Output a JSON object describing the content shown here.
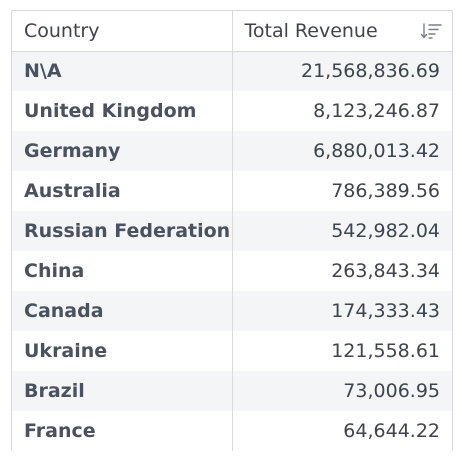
{
  "table": {
    "columns": [
      "Country",
      "Total Revenue"
    ],
    "rows": [
      {
        "country": "N\\A",
        "revenue": "21,568,836.69"
      },
      {
        "country": "United Kingdom",
        "revenue": "8,123,246.87"
      },
      {
        "country": "Germany",
        "revenue": "6,880,013.42"
      },
      {
        "country": "Australia",
        "revenue": "786,389.56"
      },
      {
        "country": "Russian Federation",
        "revenue": "542,982.04"
      },
      {
        "country": "China",
        "revenue": "263,843.34"
      },
      {
        "country": "Canada",
        "revenue": "174,333.43"
      },
      {
        "country": "Ukraine",
        "revenue": "121,558.61"
      },
      {
        "country": "Brazil",
        "revenue": "73,006.95"
      },
      {
        "country": "France",
        "revenue": "64,644.22"
      }
    ],
    "sort_icon": "sort-descending-icon",
    "colors": {
      "border": "#d9d9d9",
      "stripe": "#f4f5f7",
      "text": "#3d4450"
    }
  }
}
